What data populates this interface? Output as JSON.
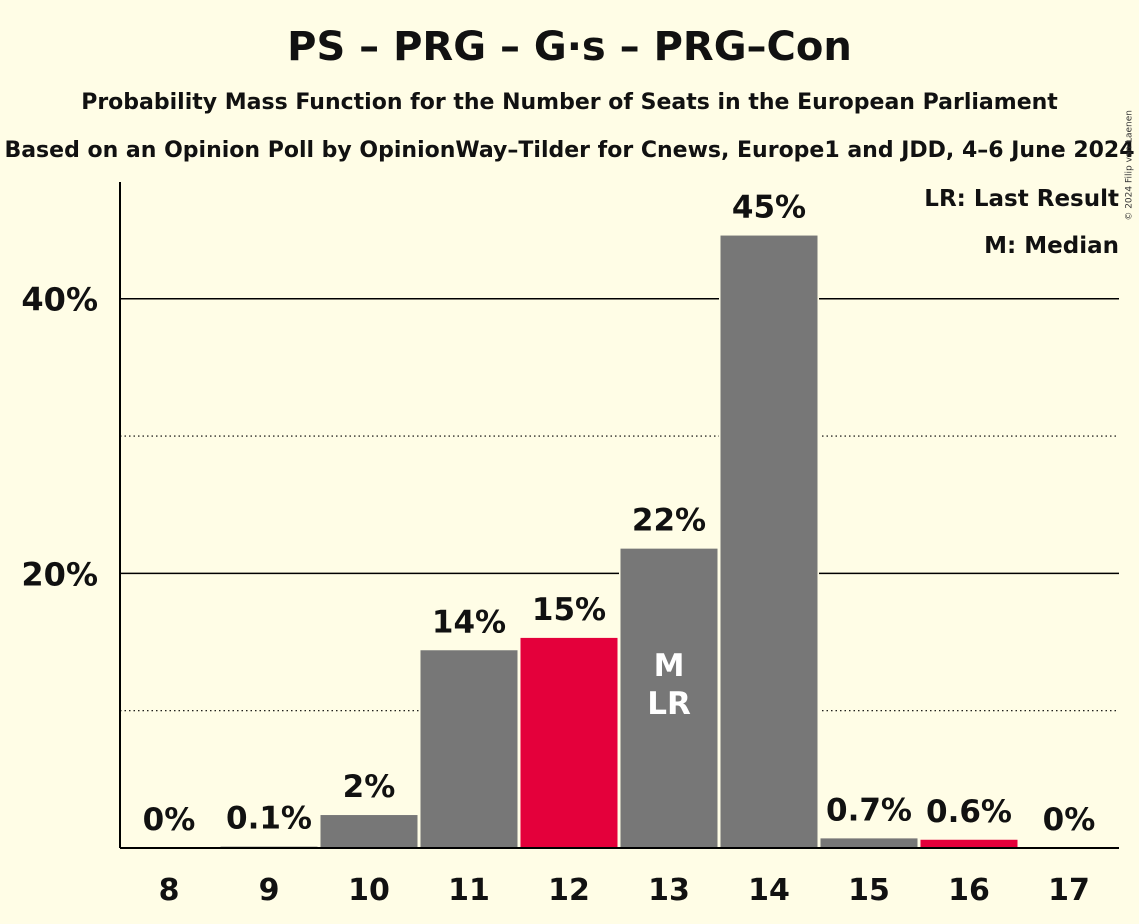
{
  "title": "PS – PRG – G·s – PRG–Con",
  "subtitle": "Probability Mass Function for the Number of Seats in the European Parliament",
  "source_line": "Based on an Opinion Poll by OpinionWay–Tilder for Cnews, Europe1 and JDD, 4–6 June 2024",
  "copyright": "© 2024 Filip van Laenen",
  "legend": {
    "last_result": "LR: Last Result",
    "median": "M: Median"
  },
  "colors": {
    "bar": "#777777",
    "highlight": "#e4003b",
    "background": "#fffde6"
  },
  "chart_data": {
    "type": "bar",
    "title": "PS – PRG – G·s – PRG–Con",
    "xlabel": "",
    "ylabel": "",
    "categories": [
      "8",
      "9",
      "10",
      "11",
      "12",
      "13",
      "14",
      "15",
      "16",
      "17"
    ],
    "values": [
      0,
      0.1,
      2.4,
      14.4,
      15.3,
      21.8,
      44.6,
      0.7,
      0.6,
      0
    ],
    "value_labels": [
      "0%",
      "0.1%",
      "2%",
      "14%",
      "15%",
      "22%",
      "45%",
      "0.7%",
      "0.6%",
      "0%"
    ],
    "highlighted_categories": [
      "12",
      "16"
    ],
    "median_category": "13",
    "last_result_category": "13",
    "median_marker": "M",
    "last_result_marker": "LR",
    "ylim": [
      0,
      48.5
    ],
    "yticks": [
      {
        "value": 10,
        "label": "",
        "style": "dotted"
      },
      {
        "value": 20,
        "label": "20%",
        "style": "solid"
      },
      {
        "value": 30,
        "label": "",
        "style": "dotted"
      },
      {
        "value": 40,
        "label": "40%",
        "style": "solid"
      }
    ],
    "grid": true,
    "legend_position": "top-right"
  }
}
